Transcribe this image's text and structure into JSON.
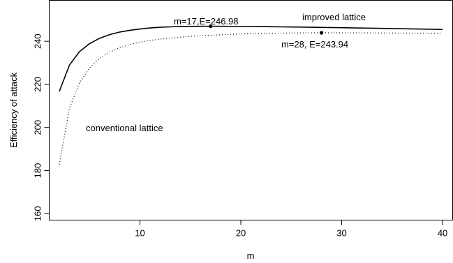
{
  "chart_data": {
    "type": "line",
    "title": "",
    "xlabel": "m",
    "ylabel": "Efficiency of attack",
    "xlim": [
      1,
      41
    ],
    "ylim": [
      157,
      259
    ],
    "xticks": [
      10,
      20,
      30,
      40
    ],
    "yticks": [
      160,
      180,
      200,
      220,
      240
    ],
    "grid": false,
    "series": [
      {
        "name": "improved lattice",
        "style": "solid",
        "color": "#000000",
        "x": [
          2,
          3,
          4,
          5,
          6,
          7,
          8,
          9,
          10,
          11,
          12,
          13,
          14,
          15,
          16,
          17,
          18,
          19,
          20,
          21,
          22,
          23,
          24,
          25,
          26,
          27,
          28,
          29,
          30,
          31,
          32,
          33,
          34,
          35,
          36,
          37,
          38,
          39,
          40
        ],
        "y": [
          216.7,
          228.9,
          235.2,
          238.9,
          241.4,
          243.1,
          244.3,
          245.1,
          245.7,
          246.2,
          246.5,
          246.7,
          246.85,
          246.93,
          246.97,
          246.98,
          246.97,
          246.94,
          246.9,
          246.86,
          246.81,
          246.76,
          246.7,
          246.64,
          246.58,
          246.51,
          246.44,
          246.37,
          246.3,
          246.22,
          246.15,
          246.07,
          245.99,
          245.91,
          245.83,
          245.75,
          245.67,
          245.59,
          245.5
        ]
      },
      {
        "name": "conventional lattice",
        "style": "dotted",
        "color": "#000000",
        "x": [
          2,
          3,
          4,
          5,
          6,
          7,
          8,
          9,
          10,
          11,
          12,
          13,
          14,
          15,
          16,
          17,
          18,
          19,
          20,
          21,
          22,
          23,
          24,
          25,
          26,
          27,
          28,
          29,
          30,
          31,
          32,
          33,
          34,
          35,
          36,
          37,
          38,
          39,
          40
        ],
        "y": [
          182.7,
          208.8,
          220.7,
          227.7,
          232.1,
          235.0,
          237.0,
          238.5,
          239.6,
          240.4,
          241.0,
          241.5,
          241.9,
          242.3,
          242.6,
          242.8,
          243.0,
          243.2,
          243.4,
          243.5,
          243.6,
          243.7,
          243.8,
          243.85,
          243.9,
          243.93,
          243.94,
          243.94,
          243.93,
          243.92,
          243.9,
          243.88,
          243.86,
          243.84,
          243.82,
          243.8,
          243.77,
          243.74,
          243.71
        ]
      }
    ],
    "points": [
      {
        "x": 17,
        "y": 246.98
      },
      {
        "x": 28,
        "y": 243.94
      }
    ],
    "annotations": {
      "improved_label": "improved lattice",
      "conventional_label": "conventional lattice",
      "max_improved": "m=17,E=246.98",
      "max_conventional": "m=28, E=243.94"
    }
  }
}
